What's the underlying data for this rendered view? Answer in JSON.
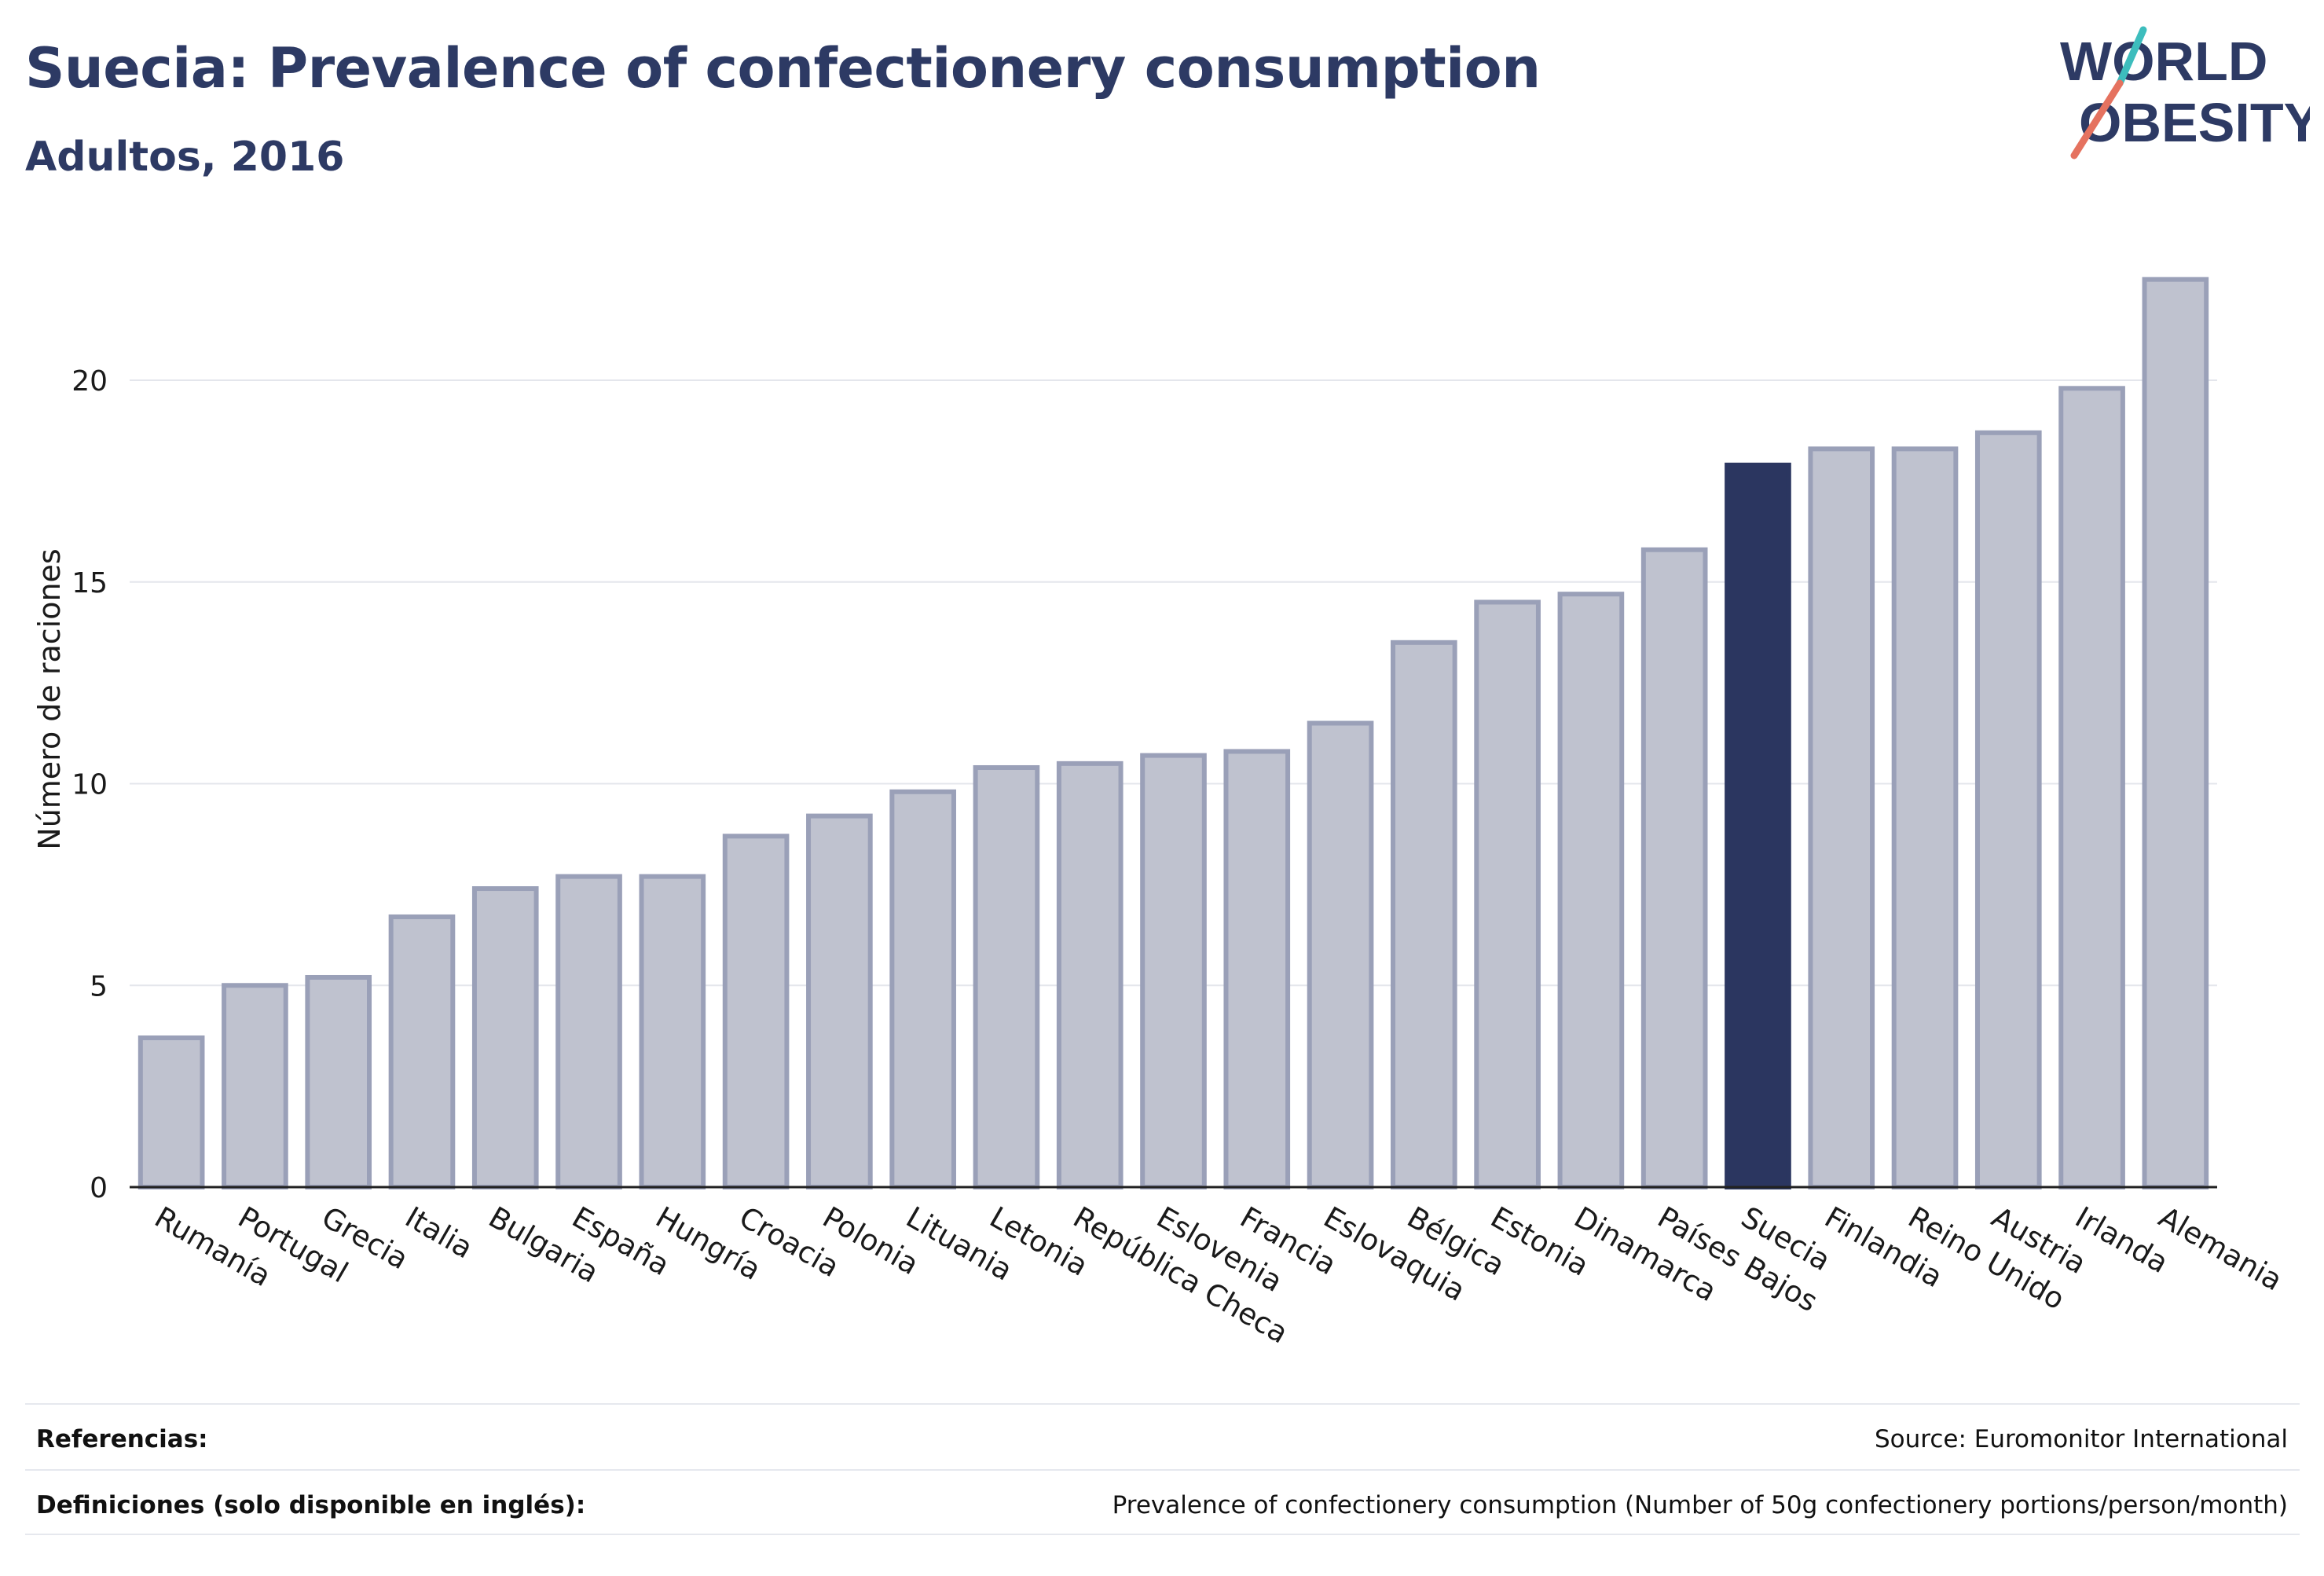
{
  "header": {
    "title": "Suecia: Prevalence of confectionery consumption",
    "subtitle": "Adultos, 2016"
  },
  "logo": {
    "line1": "WORLD",
    "line2": "OBESITY"
  },
  "chart_data": {
    "type": "bar",
    "ylabel": "Número de raciones",
    "xlabel": "",
    "ylim": [
      0,
      23
    ],
    "yticks": [
      0,
      5,
      10,
      15,
      20
    ],
    "grid": true,
    "highlight": "Suecia",
    "colors": {
      "bar": "#bfc2cf",
      "bar_border": "#9aa0b8",
      "highlight": "#2b3660"
    },
    "categories": [
      "Rumanía",
      "Portugal",
      "Grecia",
      "Italia",
      "Bulgaria",
      "España",
      "Hungría",
      "Croacia",
      "Polonia",
      "Lituania",
      "Letonia",
      "República Checa",
      "Eslovenia",
      "Francia",
      "Eslovaquia",
      "Bélgica",
      "Estonia",
      "Dinamarca",
      "Países Bajos",
      "Suecia",
      "Finlandia",
      "Reino Unido",
      "Austria",
      "Irlanda",
      "Alemania"
    ],
    "values": [
      3.7,
      5.0,
      5.2,
      6.7,
      7.4,
      7.7,
      7.7,
      8.7,
      9.2,
      9.8,
      10.4,
      10.5,
      10.7,
      10.8,
      11.5,
      13.5,
      14.5,
      14.7,
      15.8,
      17.9,
      18.3,
      18.3,
      18.7,
      19.8,
      22.5
    ]
  },
  "footer": {
    "references_label": "Referencias:",
    "references_value": "Source: Euromonitor International",
    "definitions_label": "Definiciones (solo disponible en inglés):",
    "definitions_value": "Prevalence of confectionery consumption (Number of 50g confectionery portions/person/month)"
  }
}
